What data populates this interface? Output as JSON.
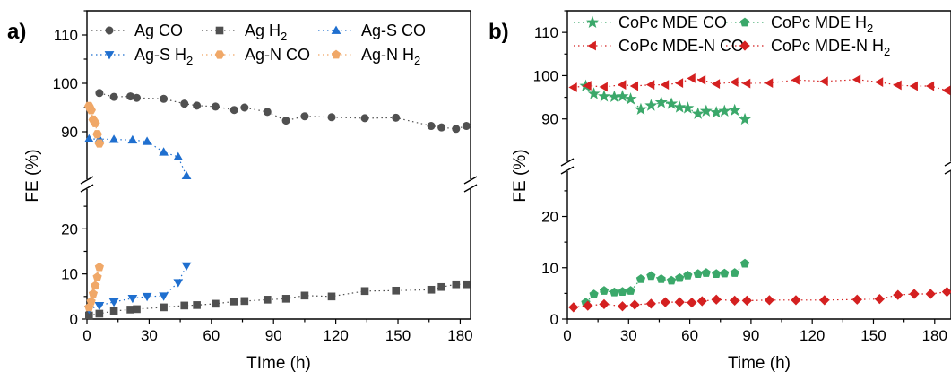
{
  "chart_data": [
    {
      "panel_label": "a)",
      "type": "scatter",
      "xlabel": "TIme (h)",
      "ylabel": "FE (%)",
      "xlim": [
        0,
        185
      ],
      "xticks": [
        0,
        30,
        60,
        90,
        120,
        150,
        180
      ],
      "ylim_lower": [
        0,
        29
      ],
      "yticks_lower": [
        0,
        10,
        20
      ],
      "ylim_upper": [
        80,
        115
      ],
      "yticks_upper": [
        90,
        100,
        110
      ],
      "legend_columns": 3,
      "series": [
        {
          "name": "Ag CO",
          "name_main": "Ag CO",
          "name_sub": "",
          "color": "#505050",
          "marker": "circle",
          "x": [
            6,
            13,
            21,
            24,
            37,
            47,
            53,
            62,
            71,
            76,
            87,
            96,
            105,
            118,
            134,
            149,
            166,
            171,
            178,
            183
          ],
          "y": [
            98,
            97.2,
            97.3,
            97,
            96.8,
            95.8,
            95.4,
            95.2,
            94.5,
            95,
            94.1,
            92.3,
            93.2,
            93,
            92.8,
            92.9,
            91.2,
            90.9,
            90.6,
            91.2
          ]
        },
        {
          "name": "Ag H2",
          "name_main": "Ag H",
          "name_sub": "2",
          "color": "#505050",
          "marker": "square",
          "x": [
            1,
            6,
            13,
            21,
            24,
            37,
            47,
            53,
            62,
            71,
            76,
            87,
            96,
            105,
            118,
            134,
            149,
            166,
            171,
            178,
            183
          ],
          "y": [
            0.8,
            1.2,
            1.8,
            2.1,
            2.2,
            2.6,
            3,
            3.1,
            3.4,
            3.9,
            4,
            4.3,
            4.5,
            5.2,
            5,
            6.2,
            6.3,
            6.5,
            7.1,
            7.7,
            7.7
          ]
        },
        {
          "name": "Ag-S CO",
          "name_main": "Ag-S CO",
          "name_sub": "",
          "color": "#1f6fcf",
          "marker": "triangle-up",
          "x": [
            1,
            6,
            13,
            22,
            29,
            37,
            44,
            48
          ],
          "y": [
            88.5,
            88.5,
            88.4,
            88.3,
            88,
            85.8,
            84.8,
            80.9
          ]
        },
        {
          "name": "Ag-S H2",
          "name_main": "Ag-S H",
          "name_sub": "2",
          "color": "#1f6fcf",
          "marker": "triangle-down",
          "x": [
            1,
            6,
            13,
            22,
            29,
            37,
            44,
            48
          ],
          "y": [
            2.2,
            3,
            3.8,
            4.6,
            5,
            5.1,
            8.1,
            11.8
          ]
        },
        {
          "name": "Ag-N CO",
          "name_main": "Ag-N CO",
          "name_sub": "",
          "color": "#f0a868",
          "marker": "hexagon",
          "x": [
            1,
            2,
            3,
            4,
            5,
            6
          ],
          "y": [
            95.3,
            94.5,
            92.5,
            91.8,
            89.5,
            87.6
          ]
        },
        {
          "name": "Ag-N H2",
          "name_main": "Ag-N H",
          "name_sub": "2",
          "color": "#f0a868",
          "marker": "pentagon",
          "x": [
            1,
            2,
            3,
            4,
            5,
            6
          ],
          "y": [
            2.6,
            3.9,
            5.6,
            7.4,
            9.3,
            11.5
          ]
        }
      ]
    },
    {
      "panel_label": "b)",
      "type": "scatter",
      "xlabel": "Time (h)",
      "ylabel": "FE (%)",
      "xlim": [
        0,
        188
      ],
      "xticks": [
        0,
        30,
        60,
        90,
        120,
        150,
        180
      ],
      "ylim_lower": [
        0,
        29
      ],
      "yticks_lower": [
        0,
        10,
        20
      ],
      "ylim_upper": [
        80,
        115
      ],
      "yticks_upper": [
        90,
        100,
        110
      ],
      "legend_columns": 2,
      "series": [
        {
          "name": "CoPc MDE CO",
          "name_main": "CoPc MDE CO",
          "name_sub": "",
          "color": "#3ba86a",
          "marker": "star",
          "x": [
            9,
            13,
            18,
            23,
            27,
            31,
            36,
            41,
            46,
            51,
            55,
            59,
            64,
            68,
            73,
            77,
            82,
            87
          ],
          "y": [
            97.6,
            95.8,
            95.2,
            95.1,
            95.2,
            94.6,
            92.2,
            93.1,
            93.8,
            93.5,
            92.7,
            92.5,
            91.2,
            91.8,
            91.5,
            91.8,
            92,
            89.9
          ]
        },
        {
          "name": "CoPc MDE H2",
          "name_main": "CoPc MDE H",
          "name_sub": "2",
          "color": "#3ba86a",
          "marker": "pentagon",
          "x": [
            9,
            13,
            18,
            23,
            27,
            31,
            36,
            41,
            46,
            51,
            55,
            59,
            64,
            68,
            73,
            77,
            82,
            87
          ],
          "y": [
            3.2,
            4.8,
            5.5,
            5.2,
            5.3,
            5.5,
            7.8,
            8.4,
            7.8,
            7.5,
            8,
            8.5,
            8.8,
            9,
            8.8,
            8.9,
            9,
            10.8
          ]
        },
        {
          "name": "CoPc MDE-N CO",
          "name_main": "CoPc MDE-N CO",
          "name_sub": "",
          "color": "#d42020",
          "marker": "triangle-left",
          "x": [
            3,
            10,
            18,
            27,
            33,
            41,
            48,
            55,
            61,
            66,
            73,
            82,
            88,
            99,
            112,
            126,
            142,
            153,
            162,
            170,
            178,
            186
          ],
          "y": [
            97.3,
            97.7,
            97.4,
            97.9,
            97.6,
            97.9,
            97.9,
            98.3,
            99.4,
            99,
            98.1,
            98.5,
            98.2,
            98.3,
            99,
            98.7,
            99.1,
            98.5,
            97.8,
            97.6,
            97.6,
            96.6
          ]
        },
        {
          "name": "CoPc MDE-N H2",
          "name_main": "CoPc MDE-N H",
          "name_sub": "2",
          "color": "#d42020",
          "marker": "diamond",
          "x": [
            3,
            10,
            18,
            27,
            33,
            41,
            48,
            55,
            61,
            66,
            73,
            82,
            88,
            99,
            112,
            126,
            142,
            153,
            162,
            170,
            178,
            186
          ],
          "y": [
            2.3,
            2.6,
            2.9,
            2.5,
            2.8,
            3,
            3.3,
            3.3,
            3.2,
            3.5,
            3.8,
            3.6,
            3.6,
            3.7,
            3.7,
            3.7,
            3.8,
            3.9,
            4.7,
            4.9,
            4.9,
            5.3
          ]
        }
      ]
    }
  ]
}
